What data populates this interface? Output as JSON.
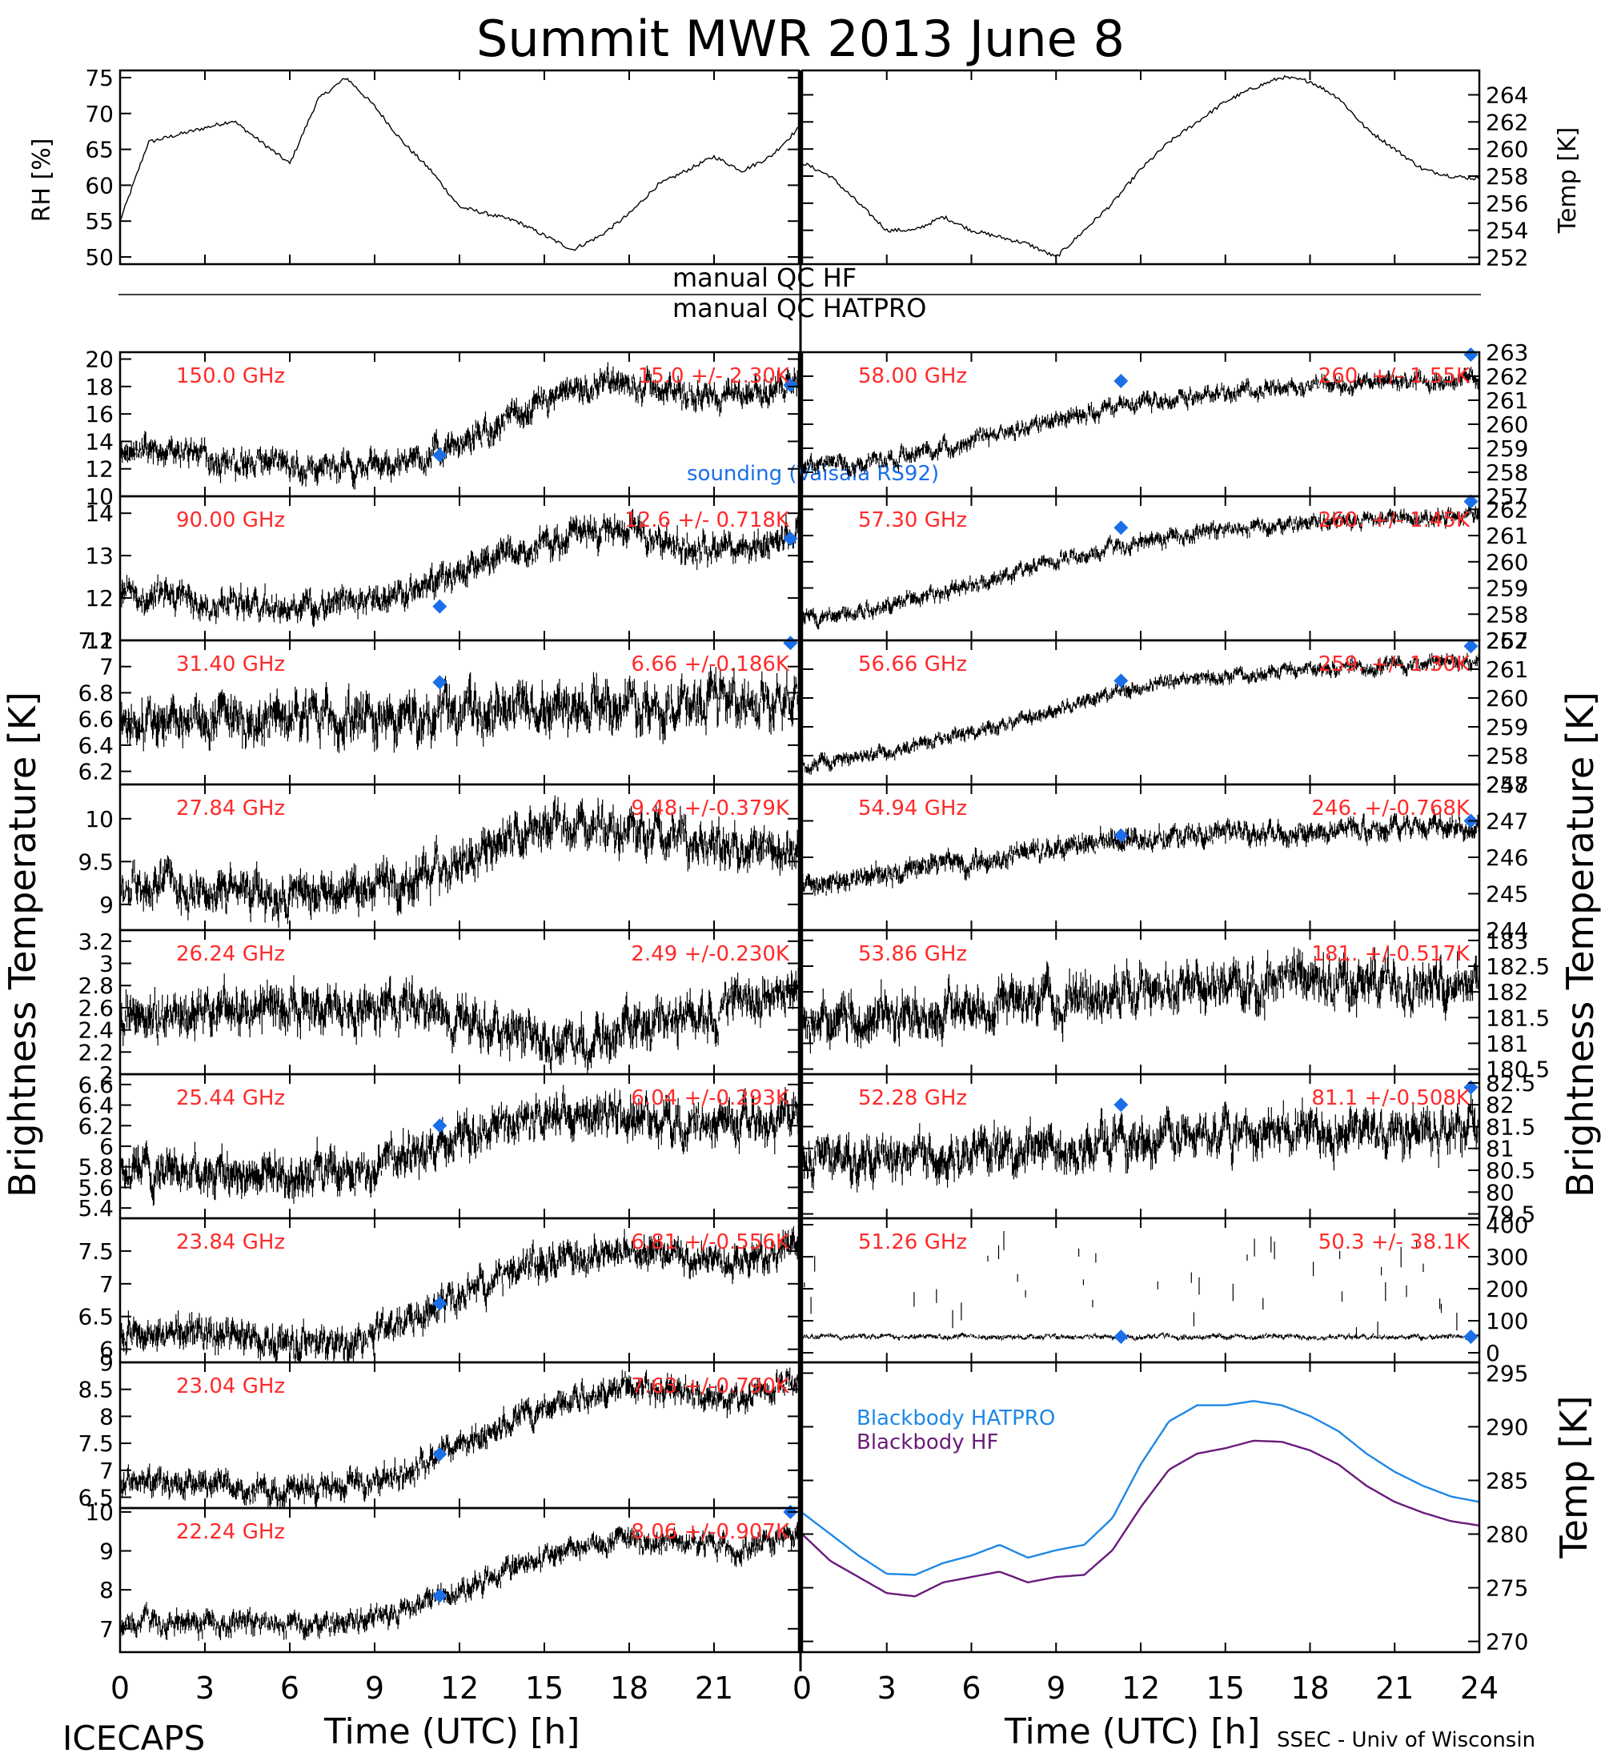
{
  "title": "Summit MWR 2013 June  8",
  "footer": {
    "left": "ICECAPS",
    "right": "SSEC - Univ of Wisconsin",
    "xlabel": "Time (UTC) [h]"
  },
  "labels": {
    "brightness_left": "Brightness Temperature [K]",
    "brightness_right": "Brightness Temperature [K]",
    "rh_axis": "RH [%]",
    "temp_axis": "Temp [K]",
    "temp_axis_bottom": "Temp [K]",
    "qc_hf": "manual  QC HF",
    "qc_hatpro": "manual  QC HATPRO",
    "sounding": "sounding (Vaisala RS92)",
    "bb_hatpro": "Blackbody HATPRO",
    "bb_hf": "Blackbody HF"
  },
  "colors": {
    "freq_label": "#ff2a2a",
    "sounding": "#1a6fe8",
    "bb_hatpro": "#1e88e5",
    "bb_hf": "#6a1b7a",
    "trace": "#000000"
  },
  "chart_data": [
    {
      "id": "rh",
      "type": "line",
      "ylabel": "RH [%]",
      "xlim": [
        0,
        24
      ],
      "ylim": [
        49,
        76
      ],
      "yticks": [
        50,
        55,
        60,
        65,
        70,
        75
      ],
      "x": [
        0,
        1,
        2,
        3,
        4,
        5,
        6,
        7,
        8,
        9,
        10,
        11,
        12,
        13,
        14,
        15,
        16,
        17,
        18,
        19,
        20,
        21,
        22,
        23,
        24
      ],
      "values": [
        55,
        66,
        67,
        68,
        69,
        66,
        63,
        72,
        75,
        71,
        66,
        62,
        57,
        56,
        55,
        53,
        51,
        53,
        56,
        60,
        62,
        64,
        62,
        64,
        68
      ]
    },
    {
      "id": "temp",
      "type": "line",
      "ylabel": "Temp [K]",
      "xlim": [
        0,
        24
      ],
      "ylim": [
        251.5,
        265.8
      ],
      "yticks": [
        252,
        254,
        256,
        258,
        260,
        262,
        264
      ],
      "x": [
        0,
        1,
        2,
        3,
        4,
        5,
        6,
        7,
        8,
        9,
        10,
        11,
        12,
        13,
        14,
        15,
        16,
        17,
        18,
        19,
        20,
        21,
        22,
        23,
        24
      ],
      "values": [
        259,
        258,
        256,
        254,
        254,
        255,
        254,
        253.5,
        253,
        252,
        254,
        256,
        258.5,
        260.5,
        262,
        263.5,
        264.5,
        265.3,
        265,
        263.8,
        261.5,
        260,
        258.5,
        258,
        257.8
      ]
    },
    {
      "id": "ch150",
      "type": "scatter",
      "label": "150.0 GHz",
      "stats": "15.0 +/- 2.30K",
      "ylim": [
        10,
        20.5
      ],
      "yticks": [
        10,
        12,
        14,
        16,
        18,
        20
      ],
      "x": [
        0,
        2,
        4,
        6,
        8,
        10,
        12,
        14,
        16,
        18,
        20,
        22,
        24
      ],
      "values": [
        13.3,
        13.2,
        12.5,
        12.2,
        12.1,
        12.4,
        13.8,
        15.8,
        17.5,
        18.2,
        17.5,
        17.4,
        18.3
      ],
      "noise": 1.0,
      "sounding": [
        [
          11.3,
          13.0
        ],
        [
          23.7,
          18.1
        ]
      ]
    },
    {
      "id": "ch58",
      "type": "scatter",
      "label": "58.00 GHz",
      "stats": "260. +/- 1.55K",
      "ylim": [
        257,
        263
      ],
      "yticks": [
        257,
        258,
        259,
        260,
        261,
        262,
        263
      ],
      "x": [
        0,
        2,
        4,
        6,
        8,
        10,
        12,
        14,
        16,
        18,
        20,
        22,
        24
      ],
      "values": [
        258.3,
        258.4,
        258.8,
        259.3,
        259.9,
        260.5,
        260.9,
        261.2,
        261.4,
        261.6,
        261.7,
        261.8,
        261.9
      ],
      "noise": 0.35,
      "sounding": [
        [
          11.3,
          261.8
        ],
        [
          23.7,
          262.9
        ]
      ]
    },
    {
      "id": "ch90",
      "type": "scatter",
      "label": "90.00 GHz",
      "stats": "12.6 +/- 0.718K",
      "ylim": [
        11,
        14.4
      ],
      "yticks": [
        11,
        12,
        13,
        14
      ],
      "x": [
        0,
        2,
        4,
        6,
        8,
        10,
        12,
        14,
        16,
        18,
        20,
        22,
        24
      ],
      "values": [
        12.1,
        12.0,
        11.9,
        11.8,
        11.9,
        12.0,
        12.6,
        13.1,
        13.5,
        13.6,
        13.2,
        13.1,
        13.6
      ],
      "noise": 0.35,
      "sounding": [
        [
          11.3,
          11.8
        ],
        [
          23.7,
          13.4
        ]
      ]
    },
    {
      "id": "ch57_3",
      "type": "scatter",
      "label": "57.30 GHz",
      "stats": "260. +/- 1.45K",
      "ylim": [
        257,
        262.5
      ],
      "yticks": [
        257,
        258,
        259,
        260,
        261,
        262
      ],
      "x": [
        0,
        2,
        4,
        6,
        8,
        10,
        12,
        14,
        16,
        18,
        20,
        22,
        24
      ],
      "values": [
        257.8,
        258.1,
        258.6,
        259.1,
        259.7,
        260.3,
        260.8,
        261.1,
        261.3,
        261.5,
        261.6,
        261.7,
        261.8
      ],
      "noise": 0.3,
      "sounding": [
        [
          11.3,
          261.3
        ],
        [
          23.7,
          262.3
        ]
      ]
    },
    {
      "id": "ch31_4",
      "type": "scatter",
      "label": "31.40 GHz",
      "stats": "6.66 +/-0.186K",
      "ylim": [
        6.1,
        7.2
      ],
      "yticks": [
        6.2,
        6.4,
        6.6,
        6.8,
        7.0,
        7.2
      ],
      "x": [
        0,
        2,
        4,
        6,
        8,
        10,
        12,
        14,
        16,
        18,
        20,
        22,
        24
      ],
      "values": [
        6.55,
        6.55,
        6.6,
        6.6,
        6.6,
        6.6,
        6.65,
        6.7,
        6.72,
        6.72,
        6.7,
        6.7,
        6.72
      ],
      "noise": 0.18,
      "sounding": [
        [
          11.3,
          6.88
        ],
        [
          23.7,
          7.18
        ]
      ]
    },
    {
      "id": "ch56_66",
      "type": "scatter",
      "label": "56.66 GHz",
      "stats": "259. +/- 1.30K",
      "ylim": [
        257,
        262
      ],
      "yticks": [
        257,
        258,
        259,
        260,
        261,
        262
      ],
      "x": [
        0,
        2,
        4,
        6,
        8,
        10,
        12,
        14,
        16,
        18,
        20,
        22,
        24
      ],
      "values": [
        257.7,
        258.0,
        258.3,
        258.8,
        259.3,
        259.9,
        260.4,
        260.7,
        260.9,
        261.0,
        261.1,
        261.2,
        261.3
      ],
      "noise": 0.25,
      "sounding": [
        [
          11.3,
          260.6
        ],
        [
          23.7,
          261.8
        ]
      ]
    },
    {
      "id": "ch27_84",
      "type": "scatter",
      "label": "27.84 GHz",
      "stats": "9.48 +/-0.379K",
      "ylim": [
        8.7,
        10.4
      ],
      "yticks": [
        9.0,
        9.5,
        10.0
      ],
      "x": [
        0,
        2,
        4,
        6,
        8,
        10,
        12,
        14,
        16,
        18,
        20,
        22,
        24
      ],
      "values": [
        9.25,
        9.2,
        9.15,
        9.1,
        9.1,
        9.2,
        9.5,
        9.8,
        9.95,
        9.9,
        9.7,
        9.6,
        9.7
      ],
      "noise": 0.25,
      "sounding": []
    },
    {
      "id": "ch54_94",
      "type": "scatter",
      "label": "54.94 GHz",
      "stats": "246. +/-0.768K",
      "ylim": [
        244,
        248
      ],
      "yticks": [
        244,
        245,
        246,
        247,
        248
      ],
      "x": [
        0,
        2,
        4,
        6,
        8,
        10,
        12,
        14,
        16,
        18,
        20,
        22,
        24
      ],
      "values": [
        245.1,
        245.4,
        245.7,
        245.9,
        246.1,
        246.3,
        246.5,
        246.6,
        246.7,
        246.75,
        246.8,
        246.85,
        246.9
      ],
      "noise": 0.3,
      "sounding": [
        [
          11.3,
          246.6
        ],
        [
          23.7,
          247.0
        ]
      ]
    },
    {
      "id": "ch26_24",
      "type": "scatter",
      "label": "26.24 GHz",
      "stats": "2.49 +/-0.230K",
      "ylim": [
        2.0,
        3.3
      ],
      "yticks": [
        2.0,
        2.2,
        2.4,
        2.6,
        2.8,
        3.0,
        3.2
      ],
      "x": [
        0,
        2,
        4,
        6,
        8,
        10,
        12,
        14,
        16,
        18,
        20,
        22,
        24
      ],
      "values": [
        2.5,
        2.55,
        2.6,
        2.6,
        2.55,
        2.6,
        2.5,
        2.35,
        2.3,
        2.4,
        2.55,
        2.6,
        2.8
      ],
      "noise": 0.2,
      "sounding": []
    },
    {
      "id": "ch53_86",
      "type": "scatter",
      "label": "53.86 GHz",
      "stats": "181. +/-0.517K",
      "ylim": [
        180.4,
        183.2
      ],
      "yticks": [
        180.5,
        181.0,
        181.5,
        182.0,
        182.5,
        183.0
      ],
      "x": [
        0,
        2,
        4,
        6,
        8,
        10,
        12,
        14,
        16,
        18,
        20,
        22,
        24
      ],
      "values": [
        181.4,
        181.5,
        181.6,
        181.7,
        181.8,
        181.9,
        182.0,
        182.1,
        182.15,
        182.2,
        182.2,
        182.2,
        182.3
      ],
      "noise": 0.45,
      "sounding": []
    },
    {
      "id": "ch25_44",
      "type": "scatter",
      "label": "25.44 GHz",
      "stats": "6.04 +/-0.293K",
      "ylim": [
        5.3,
        6.7
      ],
      "yticks": [
        5.4,
        5.6,
        5.8,
        6.0,
        6.2,
        6.4,
        6.6
      ],
      "x": [
        0,
        2,
        4,
        6,
        8,
        10,
        12,
        14,
        16,
        18,
        20,
        22,
        24
      ],
      "values": [
        5.75,
        5.8,
        5.75,
        5.7,
        5.75,
        5.85,
        6.1,
        6.25,
        6.35,
        6.3,
        6.2,
        6.25,
        6.3
      ],
      "noise": 0.2,
      "sounding": [
        [
          11.3,
          6.2
        ]
      ]
    },
    {
      "id": "ch52_28",
      "type": "scatter",
      "label": "52.28 GHz",
      "stats": "81.1 +/-0.508K",
      "ylim": [
        79.4,
        82.7
      ],
      "yticks": [
        79.5,
        80.0,
        80.5,
        81.0,
        81.5,
        82.0,
        82.5
      ],
      "x": [
        0,
        2,
        4,
        6,
        8,
        10,
        12,
        14,
        16,
        18,
        20,
        22,
        24
      ],
      "values": [
        80.8,
        80.8,
        80.9,
        80.9,
        81.0,
        81.1,
        81.2,
        81.3,
        81.35,
        81.4,
        81.4,
        81.4,
        81.5
      ],
      "noise": 0.5,
      "sounding": [
        [
          11.3,
          82.0
        ],
        [
          23.7,
          82.4
        ]
      ]
    },
    {
      "id": "ch23_84",
      "type": "scatter",
      "label": "23.84 GHz",
      "stats": "6.81 +/-0.556K",
      "ylim": [
        5.8,
        8.0
      ],
      "yticks": [
        6.0,
        6.5,
        7.0,
        7.5
      ],
      "x": [
        0,
        2,
        4,
        6,
        8,
        10,
        12,
        14,
        16,
        18,
        20,
        22,
        24
      ],
      "values": [
        6.25,
        6.25,
        6.2,
        6.1,
        6.1,
        6.35,
        6.8,
        7.2,
        7.45,
        7.55,
        7.4,
        7.35,
        7.6
      ],
      "noise": 0.25,
      "sounding": [
        [
          11.3,
          6.7
        ]
      ]
    },
    {
      "id": "ch51_26",
      "type": "scatter",
      "label": "51.26 GHz",
      "stats": "50.3 +/- 38.1K",
      "ylim": [
        -30,
        420
      ],
      "yticks": [
        0,
        100,
        200,
        300,
        400
      ],
      "x": [
        0,
        4,
        8,
        12,
        16,
        20,
        24
      ],
      "values": [
        50,
        50,
        50,
        50,
        50,
        50,
        50
      ],
      "noise": 8,
      "sounding": [
        [
          11.3,
          50
        ],
        [
          23.7,
          50
        ]
      ]
    },
    {
      "id": "ch23_04",
      "type": "scatter",
      "label": "23.04 GHz",
      "stats": "7.63 +/-0.790K",
      "ylim": [
        6.3,
        9.0
      ],
      "yticks": [
        6.5,
        7.0,
        7.5,
        8.0,
        8.5,
        9.0
      ],
      "x": [
        0,
        2,
        4,
        6,
        8,
        10,
        12,
        14,
        16,
        18,
        20,
        22,
        24
      ],
      "values": [
        6.75,
        6.75,
        6.7,
        6.6,
        6.7,
        6.95,
        7.45,
        7.95,
        8.35,
        8.55,
        8.45,
        8.25,
        8.7
      ],
      "noise": 0.25,
      "sounding": [
        [
          11.3,
          7.3
        ]
      ]
    },
    {
      "id": "blackbody",
      "type": "line",
      "ylabel": "Temp [K]",
      "xlim": [
        0,
        24
      ],
      "ylim": [
        269,
        296
      ],
      "yticks": [
        270,
        275,
        280,
        285,
        290,
        295
      ],
      "x": [
        0,
        1,
        2,
        3,
        4,
        5,
        6,
        7,
        8,
        9,
        10,
        11,
        12,
        13,
        14,
        15,
        16,
        17,
        18,
        19,
        20,
        21,
        22,
        23,
        24
      ],
      "series": [
        {
          "name": "Blackbody HATPRO",
          "values": [
            282,
            280,
            278,
            276.3,
            276.2,
            277.3,
            278,
            279,
            277.8,
            278.5,
            279,
            281.5,
            286.5,
            290.5,
            292,
            292,
            292.4,
            292,
            291,
            289.6,
            287.5,
            285.8,
            284.5,
            283.5,
            283
          ]
        },
        {
          "name": "Blackbody HF",
          "values": [
            280,
            277.5,
            276,
            274.5,
            274.2,
            275.5,
            276,
            276.5,
            275.5,
            276,
            276.2,
            278.5,
            282.5,
            286,
            287.5,
            288,
            288.7,
            288.6,
            287.8,
            286.5,
            284.5,
            283,
            282,
            281.2,
            280.8
          ]
        }
      ]
    },
    {
      "id": "ch22_24",
      "type": "scatter",
      "label": "22.24 GHz",
      "stats": "8.06 +/-0.907K",
      "ylim": [
        6.4,
        10.1
      ],
      "yticks": [
        7,
        8,
        9,
        10
      ],
      "x": [
        0,
        2,
        4,
        6,
        8,
        10,
        12,
        14,
        16,
        18,
        20,
        22,
        24
      ],
      "values": [
        7.2,
        7.2,
        7.15,
        7.1,
        7.15,
        7.45,
        8.0,
        8.6,
        9.0,
        9.3,
        9.2,
        9.0,
        9.5
      ],
      "noise": 0.3,
      "sounding": [
        [
          11.3,
          7.85
        ],
        [
          23.7,
          10.0
        ]
      ]
    }
  ],
  "x_ticks": [
    "0",
    "3",
    "6",
    "9",
    "12",
    "15",
    "18",
    "21",
    "24"
  ]
}
